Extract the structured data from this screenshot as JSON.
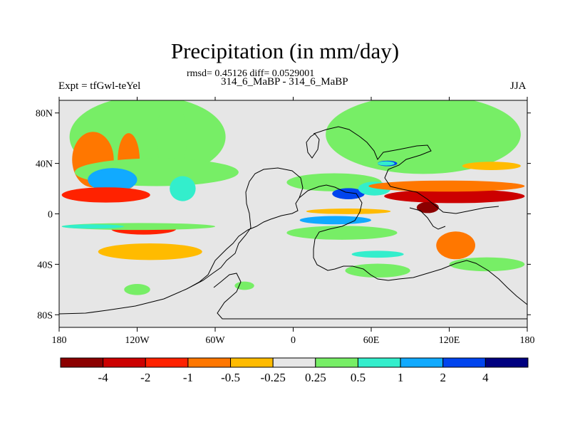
{
  "chart_data": {
    "type": "heatmap",
    "title": "Precipitation (in mm/day)",
    "stats_text": "rmsd= 0.45126 diff= 0.0529001",
    "case_label": "314_6_MaBP - 314_6_MaBP",
    "left_label": "Expt = tfGwl-teYel",
    "right_label": "JJA",
    "xlim": [
      -180,
      180
    ],
    "ylim": [
      -90,
      90
    ],
    "x_ticks": [
      {
        "value": -180,
        "label": "180"
      },
      {
        "value": -120,
        "label": "120W"
      },
      {
        "value": -60,
        "label": "60W"
      },
      {
        "value": 0,
        "label": "0"
      },
      {
        "value": 60,
        "label": "60E"
      },
      {
        "value": 120,
        "label": "120E"
      },
      {
        "value": 180,
        "label": "180"
      }
    ],
    "y_ticks": [
      {
        "value": 80,
        "label": "80N"
      },
      {
        "value": 40,
        "label": "40N"
      },
      {
        "value": 0,
        "label": "0"
      },
      {
        "value": -40,
        "label": "40S"
      },
      {
        "value": -80,
        "label": "80S"
      }
    ],
    "colorbar": {
      "colors": [
        "#8b0000",
        "#cc0000",
        "#ff2200",
        "#ff7700",
        "#ffbb00",
        "#e6e6e6",
        "#77ee66",
        "#33eecc",
        "#11aaff",
        "#0044ee",
        "#000080"
      ],
      "labels": [
        {
          "index": 1,
          "label": "-4"
        },
        {
          "index": 2,
          "label": "-2"
        },
        {
          "index": 3,
          "label": "-1"
        },
        {
          "index": 4,
          "label": "-0.5"
        },
        {
          "index": 5,
          "label": "-0.25"
        },
        {
          "index": 6,
          "label": "0.25"
        },
        {
          "index": 7,
          "label": "0.5"
        },
        {
          "index": 8,
          "label": "1"
        },
        {
          "index": 9,
          "label": "2"
        },
        {
          "index": 10,
          "label": "4"
        }
      ]
    },
    "background_color": "#e6e6e6",
    "regions": [
      {
        "name": "north-atlantic-east-green",
        "level": 0.5,
        "color": "#77ee66",
        "lon": [
          -172,
          -52
        ],
        "lat": [
          61,
          59
        ]
      },
      {
        "name": "north-atlantic-green-2",
        "level": 0.5,
        "color": "#77ee66",
        "lon": [
          -105,
          -82
        ],
        "lat": [
          60,
          57
        ]
      },
      {
        "name": "eurasia-green-band",
        "level": 0.5,
        "color": "#77ee66",
        "lon": [
          25,
          175
        ],
        "lat": [
          63,
          57
        ]
      },
      {
        "name": "north-pacific-orange",
        "level": -0.5,
        "color": "#ff7700",
        "lon": [
          -170,
          -138
        ],
        "lat": [
          43,
          40
        ]
      },
      {
        "name": "north-pacific-orange-2",
        "level": -0.5,
        "color": "#ff7700",
        "lon": [
          -135,
          -118
        ],
        "lat": [
          42,
          40
        ]
      },
      {
        "name": "north-mid-green",
        "level": 0.5,
        "color": "#77ee66",
        "lon": [
          -168,
          -42
        ],
        "lat": [
          33,
          20
        ]
      },
      {
        "name": "north-mid-cyan",
        "level": 2,
        "color": "#11aaff",
        "lon": [
          -158,
          -120
        ],
        "lat": [
          27,
          17
        ]
      },
      {
        "name": "north-pacific-rain-deficit",
        "level": -1,
        "color": "#ff2200",
        "lon": [
          -178,
          -110
        ],
        "lat": [
          15,
          11
        ]
      },
      {
        "name": "north-pacific-cyan-small",
        "level": 1,
        "color": "#33eecc",
        "lon": [
          -95,
          -75
        ],
        "lat": [
          20,
          18
        ]
      },
      {
        "name": "africa-green",
        "level": 0.5,
        "color": "#77ee66",
        "lon": [
          -5,
          68
        ],
        "lat": [
          25,
          13
        ]
      },
      {
        "name": "africa-blue-core",
        "level": 4,
        "color": "#0044ee",
        "lon": [
          30,
          55
        ],
        "lat": [
          16,
          8
        ]
      },
      {
        "name": "arabia-cyan",
        "level": 1,
        "color": "#33eecc",
        "lon": [
          50,
          75
        ],
        "lat": [
          20,
          10
        ]
      },
      {
        "name": "indian-blue",
        "level": 4,
        "color": "#0044ee",
        "lon": [
          65,
          80
        ],
        "lat": [
          40,
          4
        ]
      },
      {
        "name": "asia-red-band",
        "level": -2,
        "color": "#cc0000",
        "lon": [
          70,
          178
        ],
        "lat": [
          14,
          10
        ]
      },
      {
        "name": "asia-orange-band",
        "level": -0.5,
        "color": "#ff7700",
        "lon": [
          58,
          178
        ],
        "lat": [
          22,
          8
        ]
      },
      {
        "name": "maritime-deep-red",
        "level": -4,
        "color": "#8b0000",
        "lon": [
          95,
          112
        ],
        "lat": [
          5,
          8
        ]
      },
      {
        "name": "north-west-pacific-orange",
        "level": -0.25,
        "color": "#ffbb00",
        "lon": [
          130,
          175
        ],
        "lat": [
          38,
          6
        ]
      },
      {
        "name": "north-east-asia-cyan",
        "level": 1,
        "color": "#33eecc",
        "lon": [
          65,
          78
        ],
        "lat": [
          40,
          3
        ]
      },
      {
        "name": "south-pacific-orange-blob",
        "level": -1,
        "color": "#ff2200",
        "lon": [
          -140,
          -90
        ],
        "lat": [
          -12,
          -8
        ]
      },
      {
        "name": "south-pacific-yellow-blob",
        "level": -0.25,
        "color": "#ffbb00",
        "lon": [
          -150,
          -70
        ],
        "lat": [
          -30,
          -12
        ]
      },
      {
        "name": "south-pacific-green",
        "level": 0.5,
        "color": "#77ee66",
        "lon": [
          -178,
          -60
        ],
        "lat": [
          -10,
          -5
        ]
      },
      {
        "name": "south-pacific-cyan",
        "level": 1,
        "color": "#33eecc",
        "lon": [
          -178,
          -130
        ],
        "lat": [
          -10,
          -3
        ]
      },
      {
        "name": "south-atlantic-cyan",
        "level": 2,
        "color": "#11aaff",
        "lon": [
          5,
          60
        ],
        "lat": [
          -5,
          -6
        ]
      },
      {
        "name": "south-atlantic-green",
        "level": 0.5,
        "color": "#77ee66",
        "lon": [
          -5,
          80
        ],
        "lat": [
          -15,
          -10
        ]
      },
      {
        "name": "south-atlantic-yellow",
        "level": -0.25,
        "color": "#ffbb00",
        "lon": [
          10,
          75
        ],
        "lat": [
          2,
          4
        ]
      },
      {
        "name": "south-indian-cyan",
        "level": 1,
        "color": "#33eecc",
        "lon": [
          45,
          85
        ],
        "lat": [
          -32,
          -5
        ]
      },
      {
        "name": "south-indian-green",
        "level": 0.5,
        "color": "#77ee66",
        "lon": [
          40,
          90
        ],
        "lat": [
          -45,
          -10
        ]
      },
      {
        "name": "australia-orange",
        "level": -0.5,
        "color": "#ff7700",
        "lon": [
          110,
          140
        ],
        "lat": [
          -25,
          -20
        ]
      },
      {
        "name": "south-pacific-east-green",
        "level": 0.5,
        "color": "#77ee66",
        "lon": [
          120,
          178
        ],
        "lat": [
          -40,
          -10
        ]
      },
      {
        "name": "southern-ocean-green",
        "level": 0.5,
        "color": "#77ee66",
        "lon": [
          -130,
          -110
        ],
        "lat": [
          -60,
          -8
        ]
      },
      {
        "name": "southern-atlantic-green",
        "level": 0.5,
        "color": "#77ee66",
        "lon": [
          -45,
          -30
        ],
        "lat": [
          -57,
          -6
        ]
      }
    ]
  }
}
